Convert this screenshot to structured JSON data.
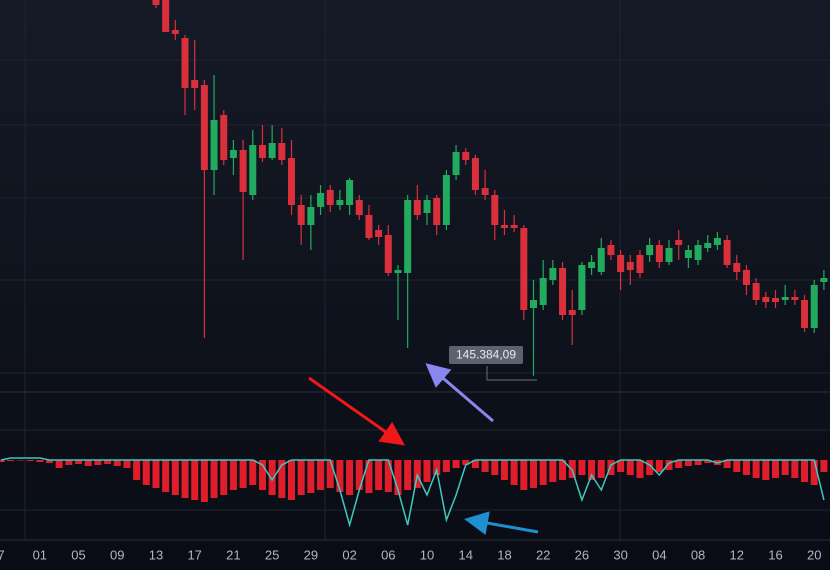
{
  "chart_data": [
    {
      "type": "candlestick",
      "categories": [
        "7",
        null,
        null,
        null,
        "01",
        null,
        null,
        null,
        "05",
        null,
        null,
        null,
        "09",
        null,
        null,
        null,
        "13",
        null,
        null,
        null,
        "17",
        null,
        null,
        null,
        "21",
        null,
        null,
        null,
        "25",
        null,
        null,
        null,
        "29",
        null,
        null,
        null,
        "02",
        null,
        null,
        null,
        "06",
        null,
        null,
        null,
        "10",
        null,
        null,
        null,
        "14",
        null,
        null,
        null,
        "18",
        null,
        null,
        null,
        "22",
        null,
        null,
        null,
        "26",
        null,
        null,
        null,
        "30",
        null,
        null,
        null,
        "04",
        null,
        null,
        null,
        "08",
        null,
        null,
        null,
        "12",
        null,
        null,
        null,
        "16",
        null,
        null,
        null,
        "20",
        null
      ],
      "open": [
        null,
        null,
        null,
        null,
        null,
        null,
        null,
        null,
        null,
        null,
        null,
        null,
        null,
        null,
        null,
        null,
        152900,
        152900,
        152300,
        152140,
        151300,
        151200,
        149500,
        150600,
        149740,
        149900,
        149000,
        150000,
        149740,
        150040,
        149740,
        148800,
        148400,
        148760,
        149100,
        148800,
        148800,
        148900,
        148600,
        148300,
        148200,
        147440,
        147440,
        148900,
        148640,
        148940,
        148400,
        149400,
        149860,
        149740,
        149140,
        149000,
        148400,
        148400,
        148340,
        146740,
        146800,
        147300,
        147540,
        146700,
        146700,
        147540,
        147460,
        148000,
        147800,
        147660,
        147800,
        147800,
        148000,
        147660,
        148100,
        147740,
        147700,
        147940,
        148000,
        148100,
        147640,
        147500,
        147240,
        146960,
        146940,
        146900,
        146960,
        146900,
        146340,
        147260
      ],
      "high": [
        null,
        null,
        null,
        null,
        null,
        null,
        null,
        null,
        null,
        null,
        null,
        null,
        null,
        null,
        null,
        null,
        152900,
        152900,
        152500,
        152200,
        152100,
        151300,
        151400,
        150700,
        150100,
        150100,
        150300,
        150400,
        150400,
        150340,
        150100,
        149000,
        149000,
        149200,
        149200,
        149100,
        149340,
        149000,
        148800,
        148400,
        148400,
        147600,
        149000,
        149200,
        149000,
        149000,
        149500,
        150000,
        149940,
        149800,
        149500,
        149100,
        148700,
        148600,
        148400,
        147300,
        147700,
        147700,
        147660,
        147100,
        147660,
        147800,
        148140,
        148100,
        147900,
        147800,
        147900,
        148140,
        148100,
        148100,
        148300,
        148000,
        148100,
        148200,
        148260,
        148200,
        147800,
        147600,
        147340,
        147060,
        147100,
        147200,
        147100,
        147000,
        147300,
        147500
      ],
      "low": [
        null,
        null,
        null,
        null,
        null,
        null,
        null,
        null,
        null,
        null,
        null,
        null,
        null,
        null,
        null,
        null,
        152740,
        152260,
        152100,
        150600,
        150700,
        146140,
        149000,
        149600,
        149400,
        147700,
        148900,
        149660,
        149700,
        149600,
        148600,
        148000,
        147900,
        148600,
        148660,
        148700,
        148600,
        148500,
        148100,
        148000,
        147380,
        146500,
        145940,
        148500,
        148400,
        148200,
        148300,
        149300,
        149600,
        149000,
        148900,
        148100,
        148200,
        148260,
        146500,
        145384.09,
        146700,
        147200,
        146500,
        146000,
        146600,
        147400,
        147400,
        147700,
        147100,
        147200,
        147340,
        147660,
        147540,
        147600,
        147700,
        147540,
        147600,
        147860,
        147900,
        147540,
        147300,
        147000,
        146800,
        146740,
        146740,
        146800,
        146800,
        146260,
        146240,
        147100
      ],
      "close": [
        null,
        null,
        null,
        null,
        null,
        null,
        null,
        null,
        null,
        null,
        null,
        null,
        null,
        null,
        null,
        null,
        152800,
        152260,
        152220,
        151140,
        151140,
        149500,
        150500,
        149700,
        149900,
        149060,
        150000,
        149740,
        150040,
        149700,
        148800,
        148400,
        148760,
        149040,
        148800,
        148900,
        149300,
        148600,
        148140,
        148160,
        147440,
        147500,
        148900,
        148600,
        148900,
        148400,
        149400,
        149860,
        149700,
        149100,
        149000,
        148400,
        148340,
        148340,
        146700,
        146900,
        147340,
        147540,
        146600,
        146600,
        147600,
        147660,
        147940,
        147800,
        147460,
        147500,
        147440,
        148000,
        147660,
        147940,
        148000,
        147900,
        148000,
        148040,
        148140,
        147600,
        147460,
        147200,
        146900,
        146860,
        146860,
        146960,
        146900,
        146340,
        147200,
        147340
      ],
      "ylim": [
        143900,
        152900
      ],
      "up_color": "#22ab5e",
      "down_color": "#d9303c",
      "annotation": "145.384,09"
    },
    {
      "type": "bar",
      "values": [
        -2,
        -1,
        0,
        -1,
        -2,
        -3,
        -8,
        -5,
        -4,
        -6,
        -5,
        -4,
        -6,
        -8,
        -20,
        -25,
        -28,
        -32,
        -35,
        -38,
        -40,
        -42,
        -38,
        -35,
        -30,
        -28,
        -25,
        -30,
        -35,
        -38,
        -40,
        -35,
        -33,
        -30,
        -28,
        -32,
        -35,
        -30,
        -33,
        -30,
        -32,
        -35,
        -30,
        -28,
        -22,
        -15,
        -12,
        -8,
        -5,
        -8,
        -12,
        -15,
        -20,
        -25,
        -30,
        -28,
        -25,
        -22,
        -20,
        -18,
        -15,
        -20,
        -18,
        -15,
        -12,
        -15,
        -18,
        -15,
        -12,
        -10,
        -8,
        -6,
        -5,
        -3,
        -5,
        -8,
        -12,
        -15,
        -18,
        -20,
        -18,
        -15,
        -18,
        -22,
        -25,
        -12
      ],
      "line": [
        0,
        2,
        2,
        2,
        2,
        0,
        0,
        0,
        0,
        0,
        0,
        0,
        0,
        0,
        0,
        0,
        0,
        0,
        0,
        0,
        0,
        0,
        0,
        0,
        0,
        0,
        0,
        -5,
        -20,
        -5,
        0,
        0,
        0,
        0,
        0,
        -30,
        -65,
        -30,
        0,
        0,
        0,
        -30,
        -65,
        -15,
        -35,
        -10,
        -60,
        -35,
        -5,
        0,
        0,
        0,
        0,
        0,
        0,
        0,
        0,
        0,
        0,
        -10,
        -40,
        -15,
        -30,
        -5,
        0,
        0,
        0,
        -5,
        -15,
        -3,
        0,
        0,
        0,
        0,
        -3,
        0,
        0,
        0,
        0,
        0,
        0,
        0,
        0,
        0,
        0,
        -40
      ],
      "ylim": [
        -80,
        20
      ],
      "color": "#e01e2b",
      "line_color": "#3ec9c0"
    }
  ]
}
